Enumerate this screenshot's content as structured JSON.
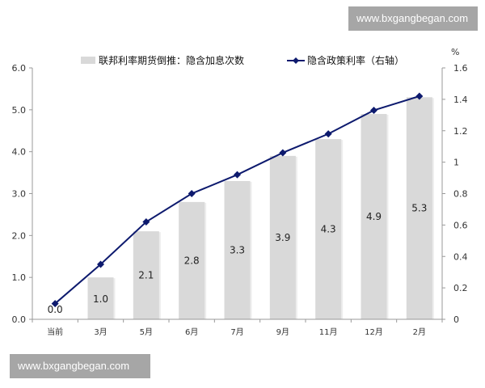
{
  "watermark": {
    "top": "www.bxgangbegan.com",
    "bottom": "www.bxgangbegan.com"
  },
  "chart_data": {
    "type": "bar",
    "categories": [
      "当前",
      "3月",
      "5月",
      "6月",
      "7月",
      "9月",
      "11月",
      "12月",
      "2月"
    ],
    "series": [
      {
        "name": "联邦利率期货倒推：隐含加息次数",
        "type": "bar",
        "axis": "left",
        "color": "#d9d9d9",
        "values": [
          0.0,
          1.0,
          2.1,
          2.8,
          3.3,
          3.9,
          4.3,
          4.9,
          5.3
        ],
        "labels": [
          "0.0",
          "1.0",
          "2.1",
          "2.8",
          "3.3",
          "3.9",
          "4.3",
          "4.9",
          "5.3"
        ]
      },
      {
        "name": "隐含政策利率（右轴）",
        "type": "line",
        "axis": "right",
        "color": "#0d1a6e",
        "marker": "diamond",
        "values": [
          0.1,
          0.35,
          0.62,
          0.8,
          0.92,
          1.06,
          1.18,
          1.33,
          1.42
        ]
      }
    ],
    "left_axis": {
      "range": [
        0,
        6
      ],
      "ticks": [
        "0.0",
        "1.0",
        "2.0",
        "3.0",
        "4.0",
        "5.0",
        "6.0"
      ]
    },
    "right_axis": {
      "unit": "%",
      "range": [
        0,
        1.6
      ],
      "ticks": [
        "0",
        "0.2",
        "0.4",
        "0.6",
        "0.8",
        "1",
        "1.2",
        "1.4",
        "1.6"
      ]
    },
    "grid": false,
    "legend_position": "top"
  }
}
